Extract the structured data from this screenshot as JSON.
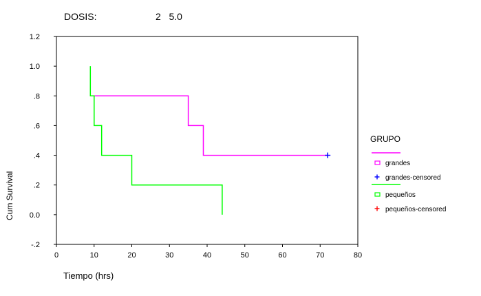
{
  "header": {
    "label": "DOSIS:",
    "value": "2   5.0"
  },
  "chart_data": {
    "type": "line",
    "xlabel": "Tiempo (hrs)",
    "ylabel": "Cum Survival",
    "xlim": [
      0,
      80
    ],
    "ylim": [
      -0.2,
      1.2
    ],
    "x_ticks": [
      0,
      10,
      20,
      30,
      40,
      50,
      60,
      70,
      80
    ],
    "x_tick_labels": [
      "0",
      "10",
      "20",
      "30",
      "40",
      "50",
      "60",
      "70",
      "80"
    ],
    "y_ticks": [
      1.2,
      1.0,
      0.8,
      0.6,
      0.4,
      0.2,
      0.0,
      -0.2
    ],
    "y_tick_labels": [
      "1.2",
      "1.0",
      ".8",
      ".6",
      ".4",
      ".2",
      "0.0",
      "-.2"
    ],
    "grid": false,
    "legend_placement": "right",
    "legend": {
      "title": "GRUPO",
      "entries": [
        {
          "label": "grandes",
          "kind": "line",
          "color": "#ff00ff"
        },
        {
          "label": "grandes-censored",
          "kind": "censor",
          "color": "#0000ff"
        },
        {
          "label": "pequeños",
          "kind": "line",
          "color": "#00ff00"
        },
        {
          "label": "pequeños-censored",
          "kind": "censor",
          "color": "#ff0000"
        }
      ]
    },
    "series": [
      {
        "name": "grandes",
        "color": "#ff00ff",
        "steps": [
          [
            10,
            0.8
          ],
          [
            35,
            0.8
          ],
          [
            35,
            0.6
          ],
          [
            39,
            0.6
          ],
          [
            39,
            0.4
          ],
          [
            72,
            0.4
          ]
        ],
        "censored": [
          [
            72,
            0.4
          ]
        ],
        "censor_color": "#0000ff"
      },
      {
        "name": "pequeños",
        "color": "#00ff00",
        "steps": [
          [
            9,
            1.0
          ],
          [
            9,
            0.8
          ],
          [
            10,
            0.8
          ],
          [
            10,
            0.6
          ],
          [
            12,
            0.6
          ],
          [
            12,
            0.4
          ],
          [
            20,
            0.4
          ],
          [
            20,
            0.2
          ],
          [
            44,
            0.2
          ],
          [
            44,
            0.0
          ]
        ],
        "censored": [],
        "censor_color": "#ff0000"
      }
    ]
  }
}
